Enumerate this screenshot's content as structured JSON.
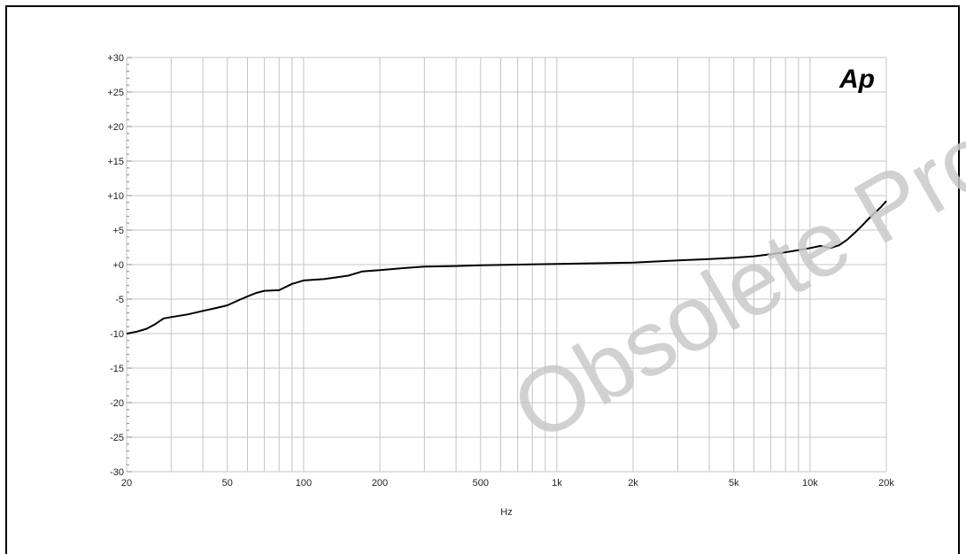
{
  "watermark": "Obsolete Product(s)",
  "chart_data": {
    "type": "line",
    "title": "",
    "xlabel": "Hz",
    "ylabel": "",
    "x_scale": "log",
    "xlim": [
      20,
      20000
    ],
    "ylim": [
      -30,
      30
    ],
    "grid": true,
    "logo": "Ap",
    "y_ticks": [
      30,
      25,
      20,
      15,
      10,
      5,
      0,
      -5,
      -10,
      -15,
      -20,
      -25,
      -30
    ],
    "y_tick_labels": [
      "+30",
      "+25",
      "+20",
      "+15",
      "+10",
      "+5",
      "+0",
      "-5",
      "-10",
      "-15",
      "-20",
      "-25",
      "-30"
    ],
    "x_ticks": [
      20,
      50,
      100,
      200,
      500,
      1000,
      2000,
      5000,
      10000,
      20000
    ],
    "x_tick_labels": [
      "20",
      "50",
      "100",
      "200",
      "500",
      "1k",
      "2k",
      "5k",
      "10k",
      "20k"
    ],
    "series": [
      {
        "color": "#000000",
        "x": [
          20,
          22,
          24,
          26,
          28,
          30,
          35,
          40,
          45,
          50,
          55,
          60,
          65,
          70,
          80,
          90,
          100,
          120,
          150,
          170,
          200,
          250,
          300,
          400,
          500,
          700,
          1000,
          1500,
          2000,
          3000,
          4000,
          5000,
          6000,
          7000,
          8000,
          9000,
          10000,
          11000,
          12000,
          13000,
          14000,
          15000,
          16000,
          17000,
          18000,
          19000,
          20000
        ],
        "values": [
          -10,
          -9.7,
          -9.3,
          -8.6,
          -7.8,
          -7.6,
          -7.2,
          -6.7,
          -6.3,
          -5.9,
          -5.2,
          -4.6,
          -4.1,
          -3.8,
          -3.7,
          -2.8,
          -2.3,
          -2.1,
          -1.6,
          -1.0,
          -0.8,
          -0.5,
          -0.3,
          -0.2,
          -0.1,
          0.0,
          0.1,
          0.2,
          0.3,
          0.6,
          0.8,
          1.0,
          1.2,
          1.5,
          1.8,
          2.1,
          2.4,
          2.7,
          2.4,
          2.8,
          3.6,
          4.6,
          5.6,
          6.6,
          7.5,
          8.3,
          9.2
        ]
      }
    ]
  }
}
